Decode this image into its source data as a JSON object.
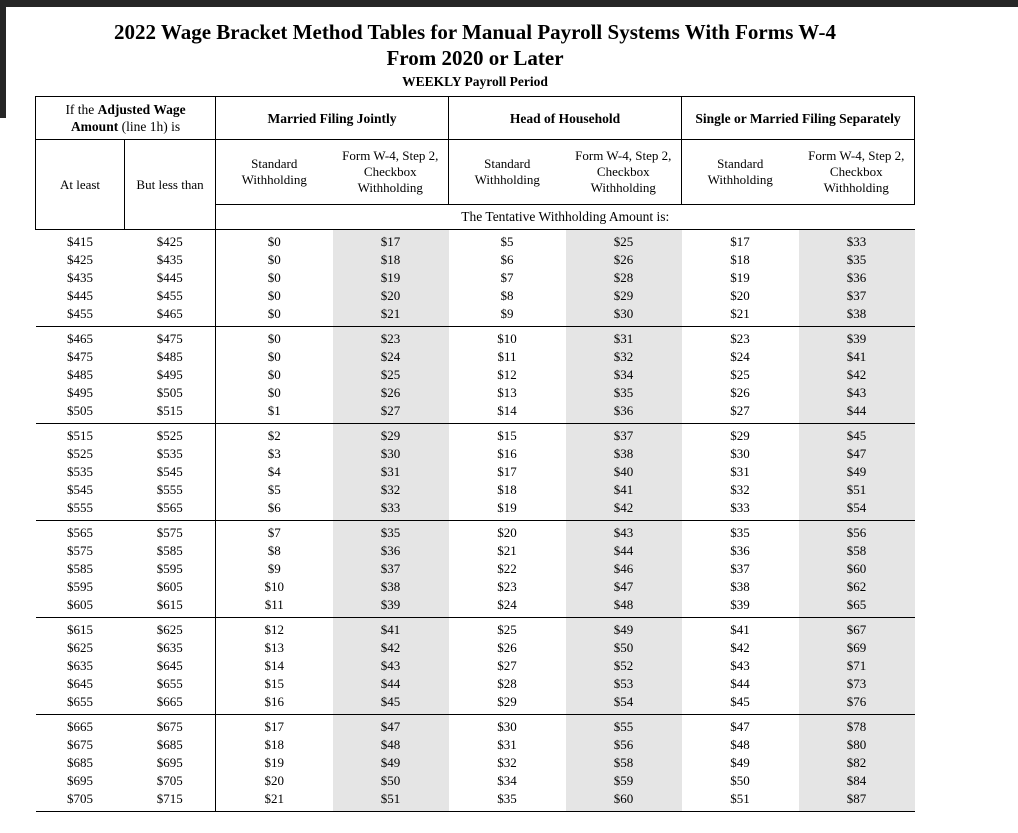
{
  "page": {
    "title_line1": "2022 Wage Bracket Method Tables for Manual Payroll Systems With Forms W-4",
    "title_line2": "From 2020 or Later",
    "subtitle": "WEEKLY Payroll Period"
  },
  "colors": {
    "checkbox_column_shading": "#e5e5e5",
    "rule_color": "#000000",
    "page_edge": "#262626"
  },
  "table": {
    "wage_header": {
      "pre": "If the ",
      "bold": "Adjusted Wage Amount",
      "post": " (line 1h) is"
    },
    "at_least_label": "At least",
    "but_less_than_label": "But less than",
    "status_headers": [
      "Married Filing Jointly",
      "Head of Household",
      "Single or Married Filing Separately"
    ],
    "sub_headers": {
      "standard": "Standard Withholding",
      "checkbox": "Form W-4, Step 2, Checkbox Withholding"
    },
    "tentative_label": "The Tentative Withholding Amount is:",
    "columns": [
      "At least",
      "But less than",
      "MFJ Standard",
      "MFJ Checkbox",
      "HoH Standard",
      "HoH Checkbox",
      "Single Standard",
      "Single Checkbox"
    ],
    "row_groups": [
      [
        [
          "$415",
          "$425",
          "$0",
          "$17",
          "$5",
          "$25",
          "$17",
          "$33"
        ],
        [
          "$425",
          "$435",
          "$0",
          "$18",
          "$6",
          "$26",
          "$18",
          "$35"
        ],
        [
          "$435",
          "$445",
          "$0",
          "$19",
          "$7",
          "$28",
          "$19",
          "$36"
        ],
        [
          "$445",
          "$455",
          "$0",
          "$20",
          "$8",
          "$29",
          "$20",
          "$37"
        ],
        [
          "$455",
          "$465",
          "$0",
          "$21",
          "$9",
          "$30",
          "$21",
          "$38"
        ]
      ],
      [
        [
          "$465",
          "$475",
          "$0",
          "$23",
          "$10",
          "$31",
          "$23",
          "$39"
        ],
        [
          "$475",
          "$485",
          "$0",
          "$24",
          "$11",
          "$32",
          "$24",
          "$41"
        ],
        [
          "$485",
          "$495",
          "$0",
          "$25",
          "$12",
          "$34",
          "$25",
          "$42"
        ],
        [
          "$495",
          "$505",
          "$0",
          "$26",
          "$13",
          "$35",
          "$26",
          "$43"
        ],
        [
          "$505",
          "$515",
          "$1",
          "$27",
          "$14",
          "$36",
          "$27",
          "$44"
        ]
      ],
      [
        [
          "$515",
          "$525",
          "$2",
          "$29",
          "$15",
          "$37",
          "$29",
          "$45"
        ],
        [
          "$525",
          "$535",
          "$3",
          "$30",
          "$16",
          "$38",
          "$30",
          "$47"
        ],
        [
          "$535",
          "$545",
          "$4",
          "$31",
          "$17",
          "$40",
          "$31",
          "$49"
        ],
        [
          "$545",
          "$555",
          "$5",
          "$32",
          "$18",
          "$41",
          "$32",
          "$51"
        ],
        [
          "$555",
          "$565",
          "$6",
          "$33",
          "$19",
          "$42",
          "$33",
          "$54"
        ]
      ],
      [
        [
          "$565",
          "$575",
          "$7",
          "$35",
          "$20",
          "$43",
          "$35",
          "$56"
        ],
        [
          "$575",
          "$585",
          "$8",
          "$36",
          "$21",
          "$44",
          "$36",
          "$58"
        ],
        [
          "$585",
          "$595",
          "$9",
          "$37",
          "$22",
          "$46",
          "$37",
          "$60"
        ],
        [
          "$595",
          "$605",
          "$10",
          "$38",
          "$23",
          "$47",
          "$38",
          "$62"
        ],
        [
          "$605",
          "$615",
          "$11",
          "$39",
          "$24",
          "$48",
          "$39",
          "$65"
        ]
      ],
      [
        [
          "$615",
          "$625",
          "$12",
          "$41",
          "$25",
          "$49",
          "$41",
          "$67"
        ],
        [
          "$625",
          "$635",
          "$13",
          "$42",
          "$26",
          "$50",
          "$42",
          "$69"
        ],
        [
          "$635",
          "$645",
          "$14",
          "$43",
          "$27",
          "$52",
          "$43",
          "$71"
        ],
        [
          "$645",
          "$655",
          "$15",
          "$44",
          "$28",
          "$53",
          "$44",
          "$73"
        ],
        [
          "$655",
          "$665",
          "$16",
          "$45",
          "$29",
          "$54",
          "$45",
          "$76"
        ]
      ],
      [
        [
          "$665",
          "$675",
          "$17",
          "$47",
          "$30",
          "$55",
          "$47",
          "$78"
        ],
        [
          "$675",
          "$685",
          "$18",
          "$48",
          "$31",
          "$56",
          "$48",
          "$80"
        ],
        [
          "$685",
          "$695",
          "$19",
          "$49",
          "$32",
          "$58",
          "$49",
          "$82"
        ],
        [
          "$695",
          "$705",
          "$20",
          "$50",
          "$34",
          "$59",
          "$50",
          "$84"
        ],
        [
          "$705",
          "$715",
          "$21",
          "$51",
          "$35",
          "$60",
          "$51",
          "$87"
        ]
      ]
    ]
  }
}
